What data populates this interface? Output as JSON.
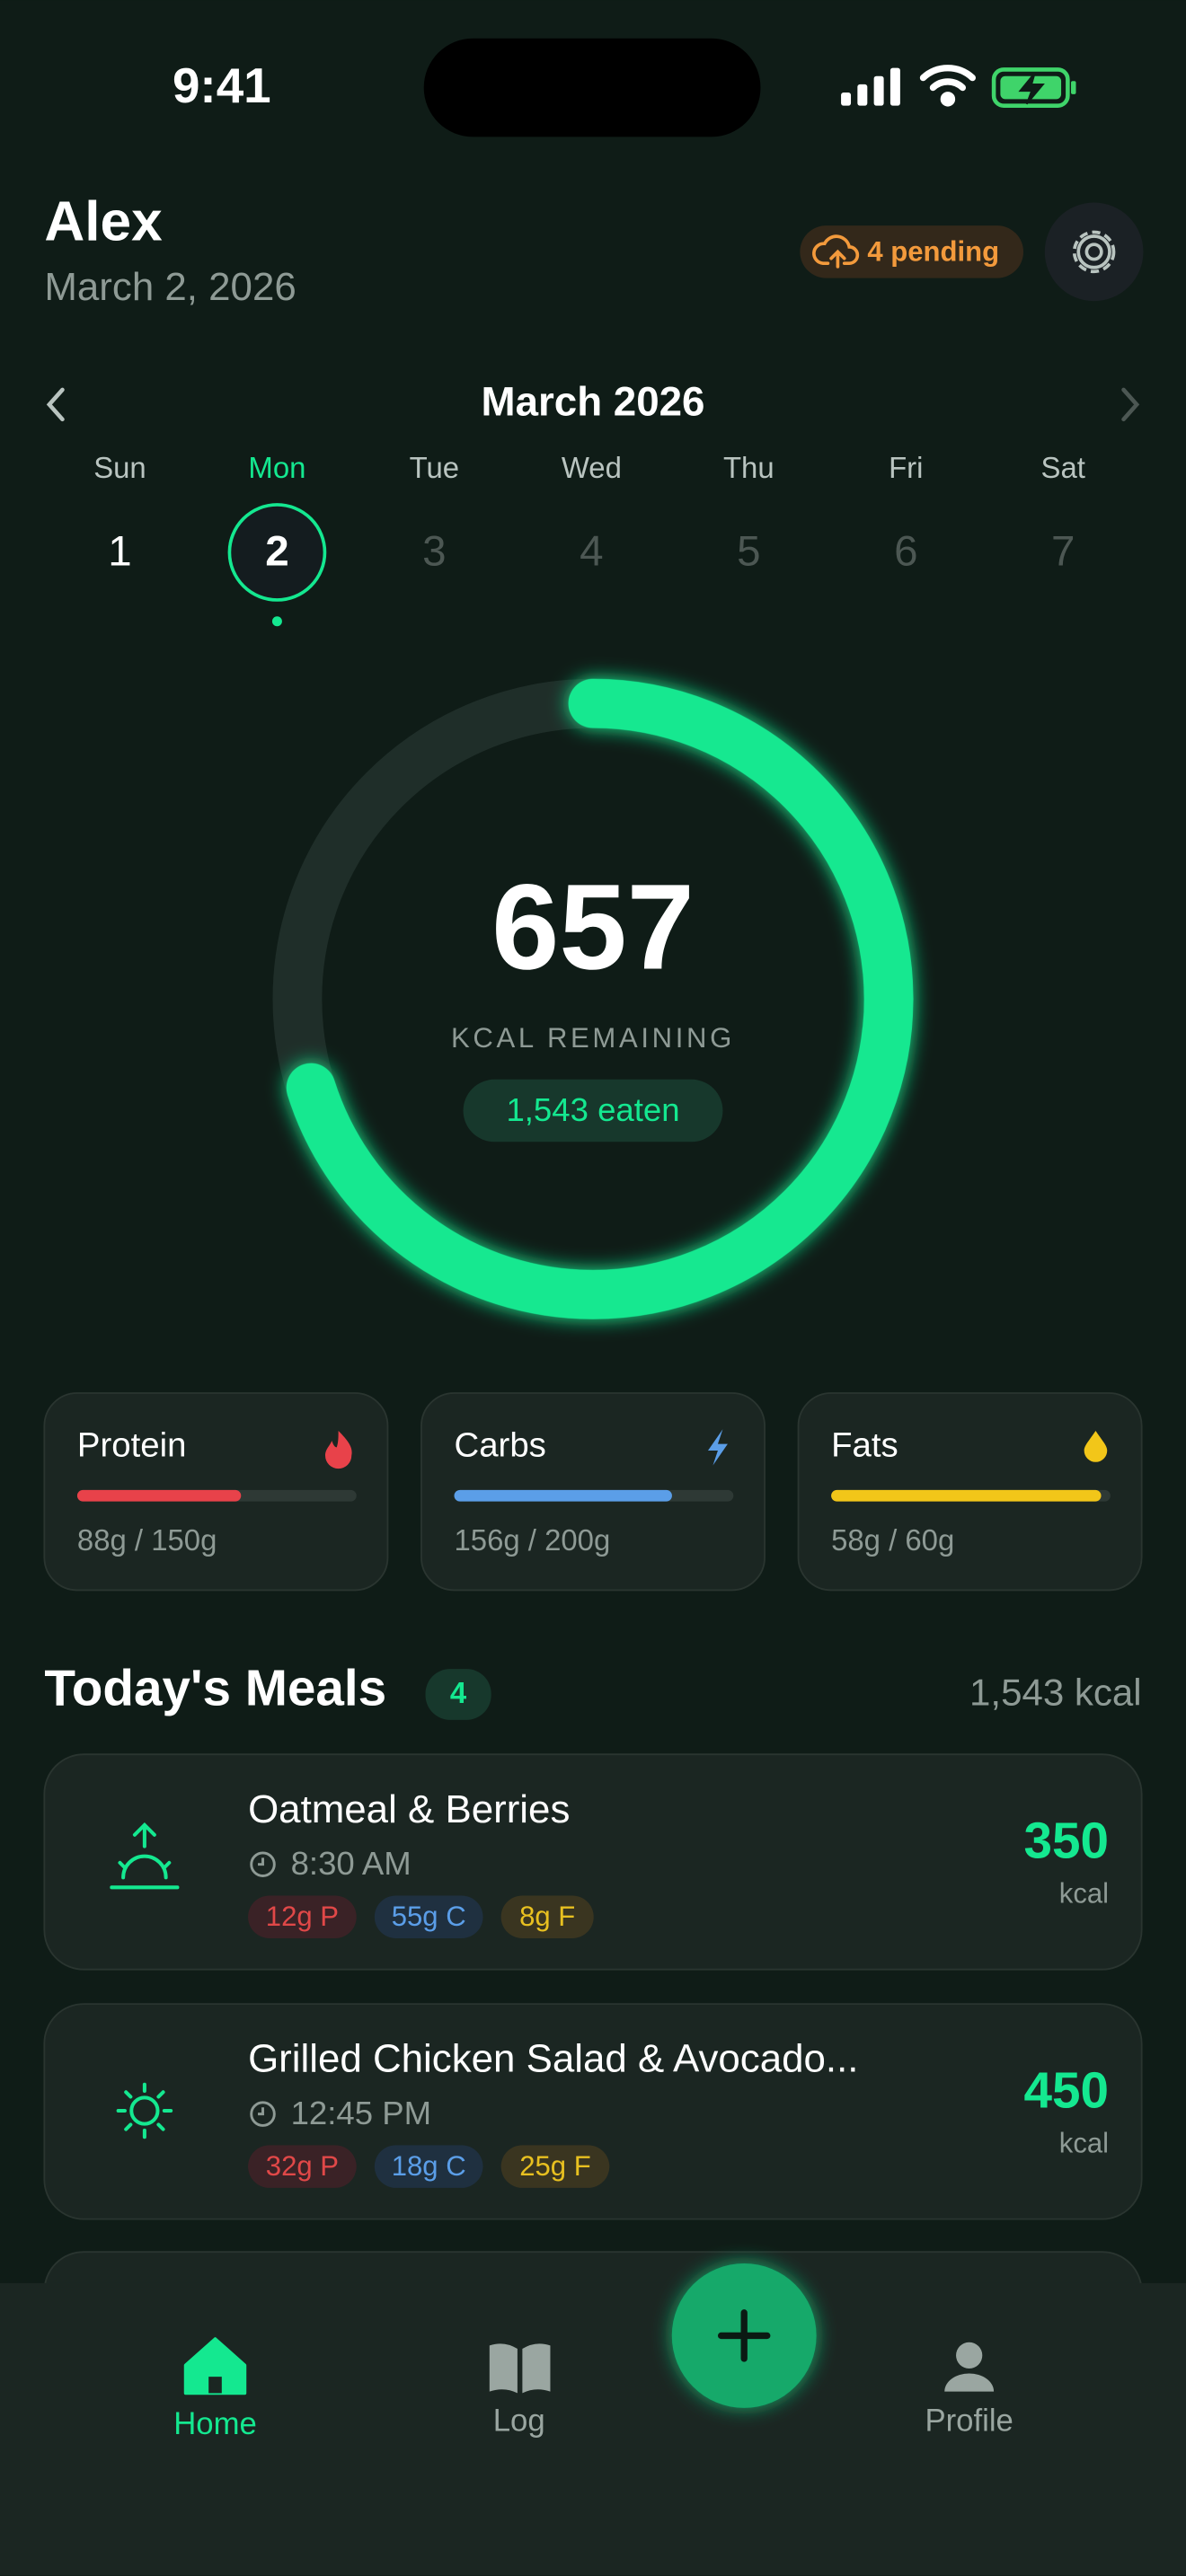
{
  "status_bar": {
    "time": "9:41"
  },
  "header": {
    "name": "Alex",
    "date": "March 2, 2026",
    "pending": "4 pending"
  },
  "calendar": {
    "month": "March 2026",
    "days": [
      {
        "name": "Sun",
        "number": "1"
      },
      {
        "name": "Mon",
        "number": "2"
      },
      {
        "name": "Tue",
        "number": "3"
      },
      {
        "name": "Wed",
        "number": "4"
      },
      {
        "name": "Thu",
        "number": "5"
      },
      {
        "name": "Fri",
        "number": "6"
      },
      {
        "name": "Sat",
        "number": "7"
      }
    ],
    "selected": 1
  },
  "calories": {
    "remaining": 657,
    "remaining_label": "KCAL REMAINING",
    "eaten": {
      "value": 1543,
      "label": "1,543 eaten"
    }
  },
  "macros": [
    {
      "name": "Protein",
      "current": 88,
      "goal": 150,
      "label": "88g / 150g",
      "color": "#e8424a"
    },
    {
      "name": "Carbs",
      "current": 156,
      "goal": 200,
      "label": "156g / 200g",
      "color": "#5b9ee8"
    },
    {
      "name": "Fats",
      "current": 58,
      "goal": 60,
      "label": "58g / 60g",
      "color": "#f2c619"
    }
  ],
  "meals_section": {
    "title": "Today's Meals",
    "count": "4",
    "total": "1,543 kcal"
  },
  "meals": [
    {
      "name": "Oatmeal & Berries",
      "time": "8:30 AM",
      "tags": [
        "12g P",
        "55g C",
        "8g F"
      ],
      "kcal": 350,
      "unit": "kcal"
    },
    {
      "name": "Grilled Chicken Salad & Avocado...",
      "time": "12:45 PM",
      "tags": [
        "32g P",
        "18g C",
        "25g F"
      ],
      "kcal": 450,
      "unit": "kcal"
    }
  ],
  "nav": {
    "items": [
      "Home",
      "Log",
      "Profile"
    ]
  }
}
